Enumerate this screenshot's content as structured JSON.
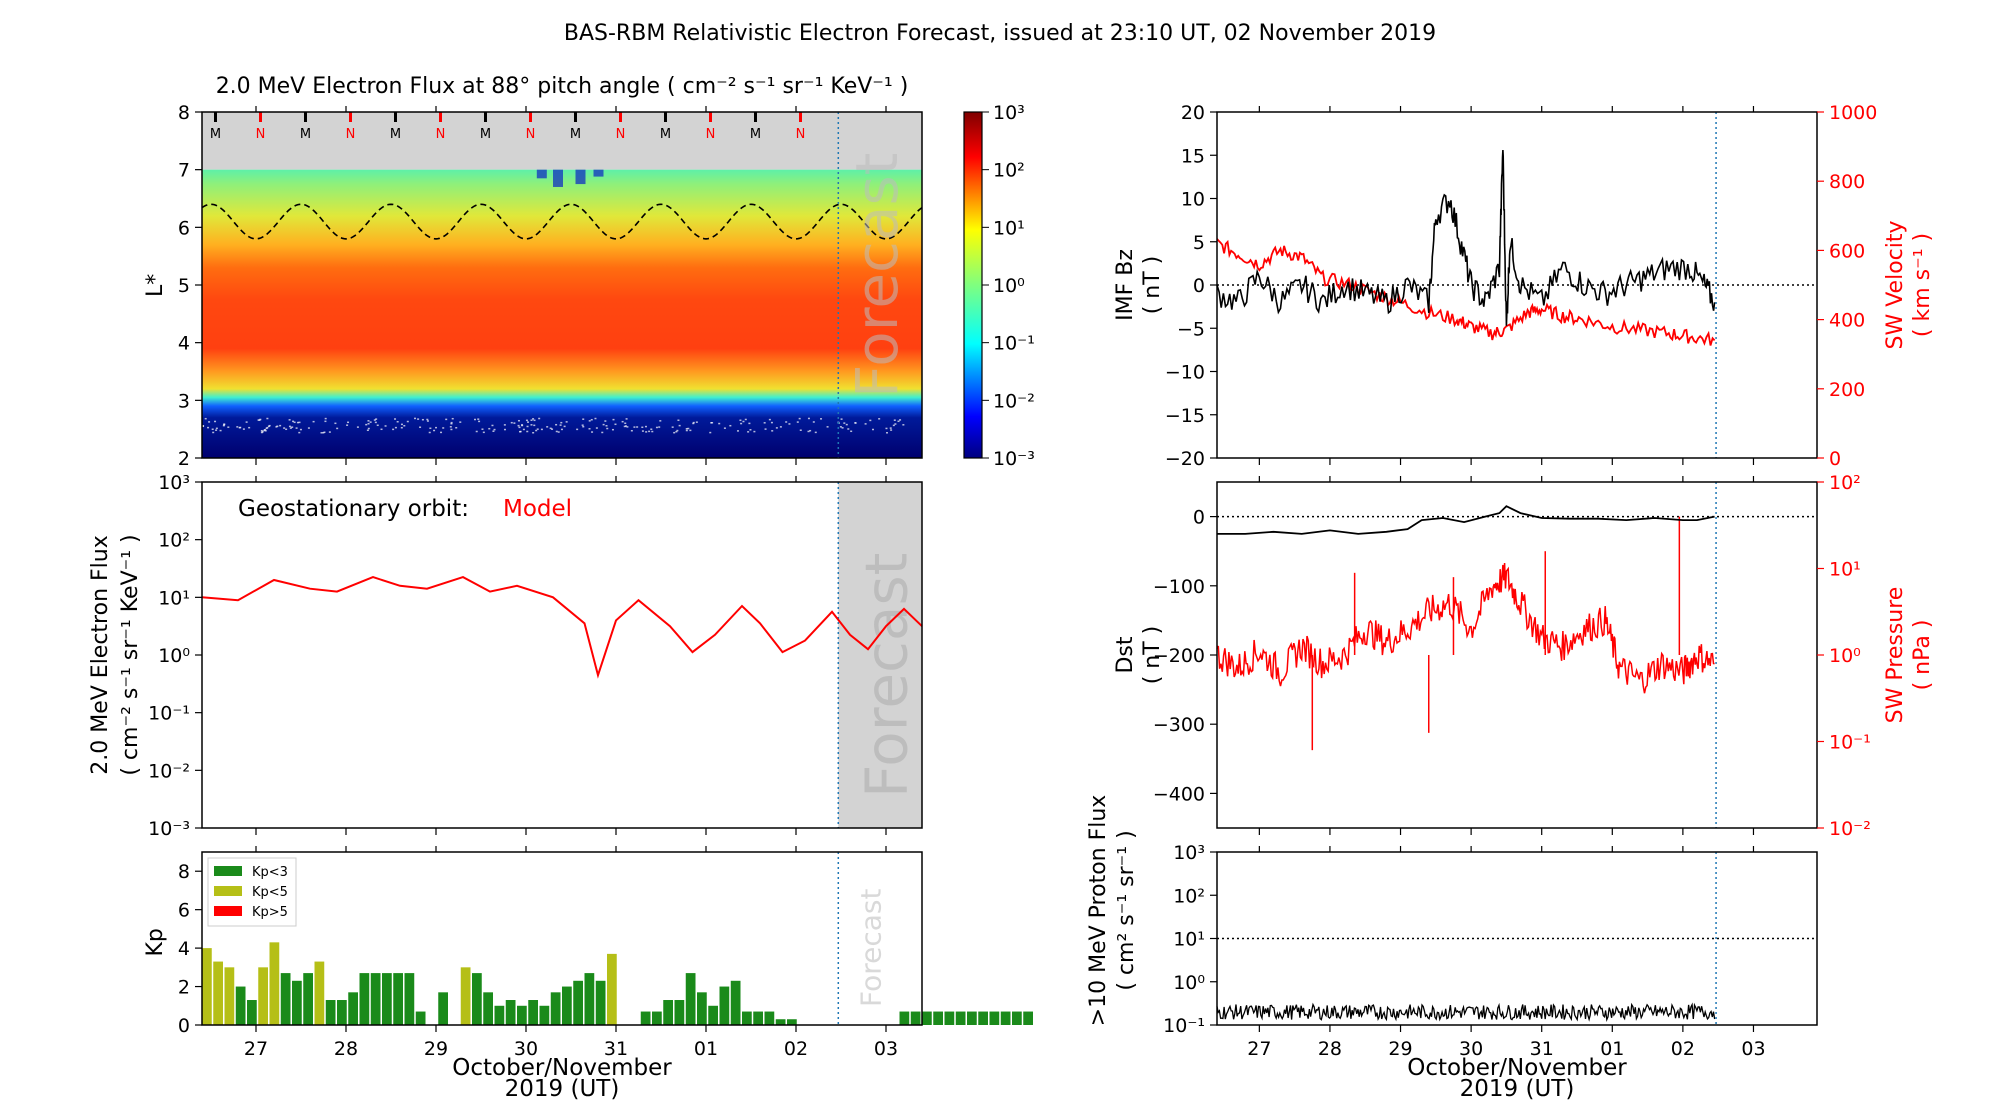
{
  "title": "BAS-RBM Relativistic Electron Forecast, issued at 23:10 UT, 02 November 2019",
  "forecast_label": "Forecast",
  "colors": {
    "model": "#ff0000",
    "kp_low": "#1a8a1a",
    "kp_mid": "#b5bf17",
    "kp_high": "#ff0000",
    "divider": "#1f77b4",
    "gray": "#d3d3d3",
    "black": "#000000"
  },
  "x_axis": {
    "tick_labels": [
      "27",
      "28",
      "29",
      "30",
      "31",
      "01",
      "02",
      "03"
    ],
    "label_line1": "October/November",
    "label_line2": "2019 (UT)"
  },
  "chart_data": [
    {
      "id": "lstar",
      "type": "heatmap",
      "title": "2.0 MeV Electron Flux at 88° pitch angle ( cm⁻² s⁻¹ sr⁻¹ KeV⁻¹ )",
      "ylabel": "L*",
      "ylim": [
        2,
        8
      ],
      "yticks": [
        "2",
        "3",
        "4",
        "5",
        "6",
        "7",
        "8"
      ],
      "x_range_days": [
        26.4,
        34.4
      ],
      "colorbar": {
        "ticks": [
          "10⁻³",
          "10⁻²",
          "10⁻¹",
          "10⁰",
          "10¹",
          "10²",
          "10³"
        ],
        "range_log10": [
          -3,
          3
        ]
      },
      "noon_midnight_markers": [
        "M",
        "N",
        "M",
        "N",
        "M",
        "N",
        "M",
        "N",
        "M",
        "N",
        "M",
        "N",
        "M",
        "N"
      ],
      "geo_dashed_L": {
        "mean": 6.1,
        "amplitude": 0.3,
        "period_days": 1
      },
      "forecast_start_day": 33.47
    },
    {
      "id": "geo",
      "type": "line",
      "ylabel": "2.0 MeV Electron Flux",
      "ylabel_units": "( cm⁻² s⁻¹ sr⁻¹ KeV⁻¹ )",
      "legend_label": "Geostationary orbit:",
      "legend_model": "Model",
      "ylim_log10": [
        -3,
        3
      ],
      "yticks": [
        "10⁻³",
        "10⁻²",
        "10⁻¹",
        "10⁰",
        "10¹",
        "10²",
        "10³"
      ],
      "series": [
        {
          "name": "Model",
          "x": [
            26.4,
            26.8,
            27.2,
            27.6,
            27.9,
            28.3,
            28.6,
            28.9,
            29.3,
            29.6,
            29.9,
            30.3,
            30.65,
            30.8,
            31.0,
            31.25,
            31.6,
            31.85,
            32.1,
            32.4,
            32.6,
            32.85,
            33.1,
            33.4,
            33.6,
            33.8,
            34.0,
            34.2,
            34.4
          ],
          "log10_values": [
            1.0,
            0.95,
            1.3,
            1.15,
            1.1,
            1.35,
            1.2,
            1.15,
            1.35,
            1.1,
            1.2,
            1.0,
            0.55,
            -0.35,
            0.6,
            0.95,
            0.5,
            0.05,
            0.35,
            0.85,
            0.55,
            0.05,
            0.25,
            0.75,
            0.35,
            0.1,
            0.5,
            0.8,
            0.5
          ]
        }
      ],
      "forecast_start_day": 33.47
    },
    {
      "id": "kp",
      "type": "bar",
      "ylabel": "Kp",
      "ylim": [
        0,
        9
      ],
      "yticks": [
        "0",
        "2",
        "4",
        "6",
        "8"
      ],
      "legend": [
        "Kp<3",
        "Kp<5",
        "Kp>5"
      ],
      "bar_width_days": 0.125,
      "start_day": 26.4,
      "values": [
        4.0,
        3.3,
        3.0,
        2.0,
        1.3,
        3.0,
        4.3,
        2.7,
        2.3,
        2.7,
        3.3,
        1.3,
        1.3,
        1.7,
        2.7,
        2.7,
        2.7,
        2.7,
        2.7,
        0.7,
        0,
        1.7,
        0,
        3.0,
        2.7,
        1.7,
        1.0,
        1.3,
        1.0,
        1.3,
        1.0,
        1.7,
        2.0,
        2.3,
        2.7,
        2.3,
        3.7,
        0,
        0,
        0.7,
        0.7,
        1.3,
        1.3,
        2.7,
        1.7,
        1.0,
        2.0,
        2.3,
        0.7,
        0.7,
        0.7,
        0.3,
        0.3,
        0,
        0,
        0,
        0,
        0,
        0,
        0,
        0,
        0,
        0.7,
        0.7,
        0.7,
        0.7,
        0.7,
        0.7,
        0.7,
        0.7,
        0.7,
        0.7,
        0.7,
        0.7
      ],
      "forecast_start_day": 33.47
    },
    {
      "id": "imf",
      "type": "line",
      "ylabel": "IMF Bz",
      "ylabel_units": "( nT )",
      "ylim": [
        -20,
        20
      ],
      "yticks": [
        "−20",
        "−15",
        "−10",
        "−5",
        "0",
        "5",
        "10",
        "15",
        "20"
      ],
      "ylabel_right": "SW Velocity",
      "ylabel_right_units": "( km s⁻¹ )",
      "ylim_right": [
        0,
        1000
      ],
      "yticks_right": [
        "0",
        "200",
        "400",
        "600",
        "800",
        "1000"
      ],
      "series": [
        {
          "name": "IMF Bz",
          "x": [
            26.4,
            26.7,
            27.0,
            27.3,
            27.6,
            27.9,
            28.2,
            28.5,
            28.8,
            29.1,
            29.4,
            29.5,
            29.7,
            29.85,
            30.0,
            30.2,
            30.4,
            30.45,
            30.5,
            30.55,
            30.7,
            31.0,
            31.3,
            31.6,
            31.9,
            32.2,
            32.5,
            32.8,
            33.1,
            33.3,
            33.45
          ],
          "values": [
            -1,
            -2,
            1,
            -2,
            0,
            -2,
            0,
            -1,
            -2,
            0,
            -2,
            8,
            10,
            5,
            0,
            -2,
            2,
            16,
            -5,
            5,
            0,
            -2,
            2,
            0,
            -1,
            0,
            1,
            2,
            2,
            0,
            -2
          ]
        },
        {
          "name": "SW Velocity",
          "x": [
            26.4,
            26.7,
            27.0,
            27.3,
            27.6,
            27.9,
            28.3,
            28.7,
            29.0,
            29.4,
            29.8,
            30.0,
            30.3,
            30.5,
            30.8,
            31.0,
            31.3,
            31.6,
            32.0,
            32.4,
            32.8,
            33.1,
            33.45
          ],
          "values": [
            620,
            590,
            560,
            600,
            580,
            520,
            500,
            470,
            450,
            420,
            400,
            380,
            360,
            370,
            420,
            430,
            410,
            400,
            380,
            370,
            360,
            350,
            340
          ]
        }
      ],
      "forecast_start_day": 33.47
    },
    {
      "id": "dst",
      "type": "line",
      "ylabel": "Dst",
      "ylabel_units": "( nT )",
      "ylim": [
        -450,
        50
      ],
      "yticks": [
        "0",
        "−100",
        "−200",
        "−300",
        "−400"
      ],
      "ylabel_right": "SW Pressure",
      "ylabel_right_units": "( nPa )",
      "ylim_right_log10": [
        -2,
        2
      ],
      "yticks_right": [
        "10⁻²",
        "10⁻¹",
        "10⁰",
        "10¹",
        "10²"
      ],
      "series": [
        {
          "name": "Dst",
          "x": [
            26.4,
            26.8,
            27.2,
            27.6,
            28.0,
            28.4,
            28.8,
            29.1,
            29.3,
            29.6,
            29.9,
            30.2,
            30.4,
            30.5,
            30.7,
            31.0,
            31.4,
            31.8,
            32.2,
            32.6,
            33.0,
            33.2,
            33.45
          ],
          "values": [
            -25,
            -25,
            -22,
            -25,
            -20,
            -25,
            -22,
            -18,
            -5,
            -2,
            -8,
            0,
            5,
            15,
            5,
            -2,
            -3,
            -3,
            -5,
            -2,
            -5,
            -5,
            0
          ]
        },
        {
          "name": "SW Pressure",
          "x": [
            26.4,
            26.7,
            27.0,
            27.3,
            27.6,
            27.9,
            28.2,
            28.5,
            28.8,
            29.1,
            29.4,
            29.7,
            30.0,
            30.3,
            30.5,
            30.7,
            31.0,
            31.3,
            31.6,
            31.9,
            32.1,
            32.4,
            32.7,
            33.0,
            33.2,
            33.45
          ],
          "log10_values": [
            0.0,
            -0.15,
            0.05,
            -0.2,
            0.1,
            -0.1,
            0.0,
            0.3,
            0.15,
            0.3,
            0.5,
            0.6,
            0.3,
            0.8,
            0.9,
            0.6,
            0.2,
            0.1,
            0.3,
            0.4,
            -0.15,
            -0.3,
            -0.1,
            -0.2,
            0.0,
            -0.1
          ]
        }
      ],
      "forecast_start_day": 33.47
    },
    {
      "id": "proton",
      "type": "line",
      "ylabel": ">10 MeV Proton Flux",
      "ylabel_units": "( cm² s⁻¹ sr⁻¹ )",
      "ylim_log10": [
        -1,
        3
      ],
      "yticks": [
        "10⁻¹",
        "10⁰",
        "10¹",
        "10²",
        "10³"
      ],
      "threshold_log10": 1,
      "series": [
        {
          "name": ">10 MeV Proton Flux",
          "baseline_log10": -0.7,
          "x_end_day": 33.45
        }
      ],
      "forecast_start_day": 33.47
    }
  ]
}
